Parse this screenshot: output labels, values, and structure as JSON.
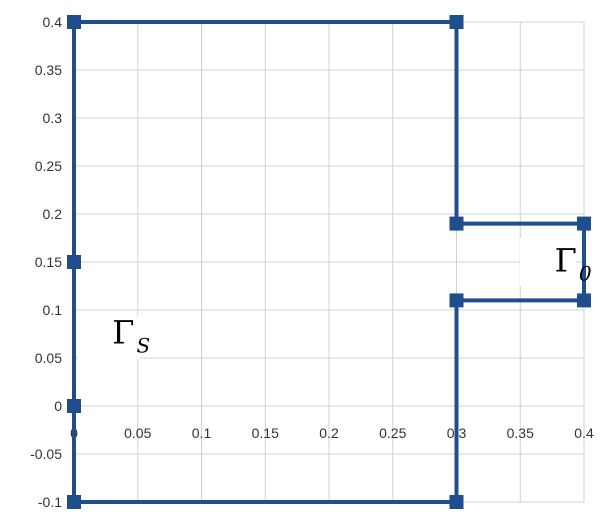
{
  "chart_data": {
    "type": "line",
    "xlim": [
      0,
      0.4
    ],
    "ylim": [
      -0.1,
      0.4
    ],
    "x_ticks": [
      "0",
      "0.05",
      "0.1",
      "0.15",
      "0.2",
      "0.25",
      "0.3",
      "0.35",
      "0.4"
    ],
    "y_ticks": [
      "0.4",
      "0.35",
      "0.3",
      "0.25",
      "0.2",
      "0.15",
      "0.1",
      "0.05",
      "0",
      "-0.05",
      "-0.1"
    ],
    "grid": true,
    "legend": "none",
    "line_color": "#1f4e8c",
    "grid_color": "#d0d0d0",
    "series": [
      {
        "points": [
          [
            0,
            0
          ],
          [
            0,
            0.15
          ],
          [
            0,
            0.4
          ],
          [
            0.3,
            0.4
          ],
          [
            0.3,
            0.19
          ],
          [
            0.4,
            0.19
          ],
          [
            0.4,
            0.11
          ],
          [
            0.3,
            0.11
          ],
          [
            0.3,
            -0.1
          ],
          [
            0,
            -0.1
          ],
          [
            0,
            0
          ]
        ]
      }
    ],
    "annotations": [
      {
        "text": "Γ",
        "sub": "S",
        "x": 0.03,
        "y": 0.065
      },
      {
        "text": "Γ",
        "sub": "0",
        "x": 0.377,
        "y": 0.14
      }
    ]
  }
}
